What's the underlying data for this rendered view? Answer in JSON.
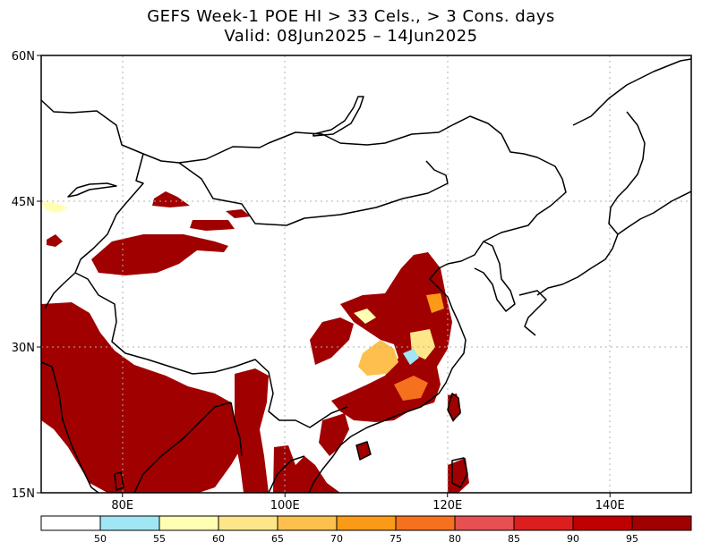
{
  "title_line1": "GEFS Week-1 POE HI > 33 Cels., > 3 Cons. days",
  "title_line2": "Valid: 08Jun2025 – 14Jun2025",
  "lat_ticks": [
    {
      "lat": 60,
      "label": "60N"
    },
    {
      "lat": 45,
      "label": "45N"
    },
    {
      "lat": 30,
      "label": "30N"
    },
    {
      "lat": 15,
      "label": "15N"
    }
  ],
  "lon_ticks": [
    {
      "lon": 80,
      "label": "80E"
    },
    {
      "lon": 100,
      "label": "100E"
    },
    {
      "lon": 120,
      "label": "120E"
    },
    {
      "lon": 140,
      "label": "140E"
    }
  ],
  "colorbar": {
    "colors": [
      "#ffffff",
      "#a0e6f5",
      "#ffffb4",
      "#fde68a",
      "#fdc04c",
      "#fb9a16",
      "#f5711d",
      "#e65050",
      "#dc1e1e",
      "#c00000",
      "#a00000"
    ],
    "labels": [
      "50",
      "55",
      "60",
      "65",
      "70",
      "75",
      "80",
      "85",
      "90",
      "95"
    ]
  }
}
